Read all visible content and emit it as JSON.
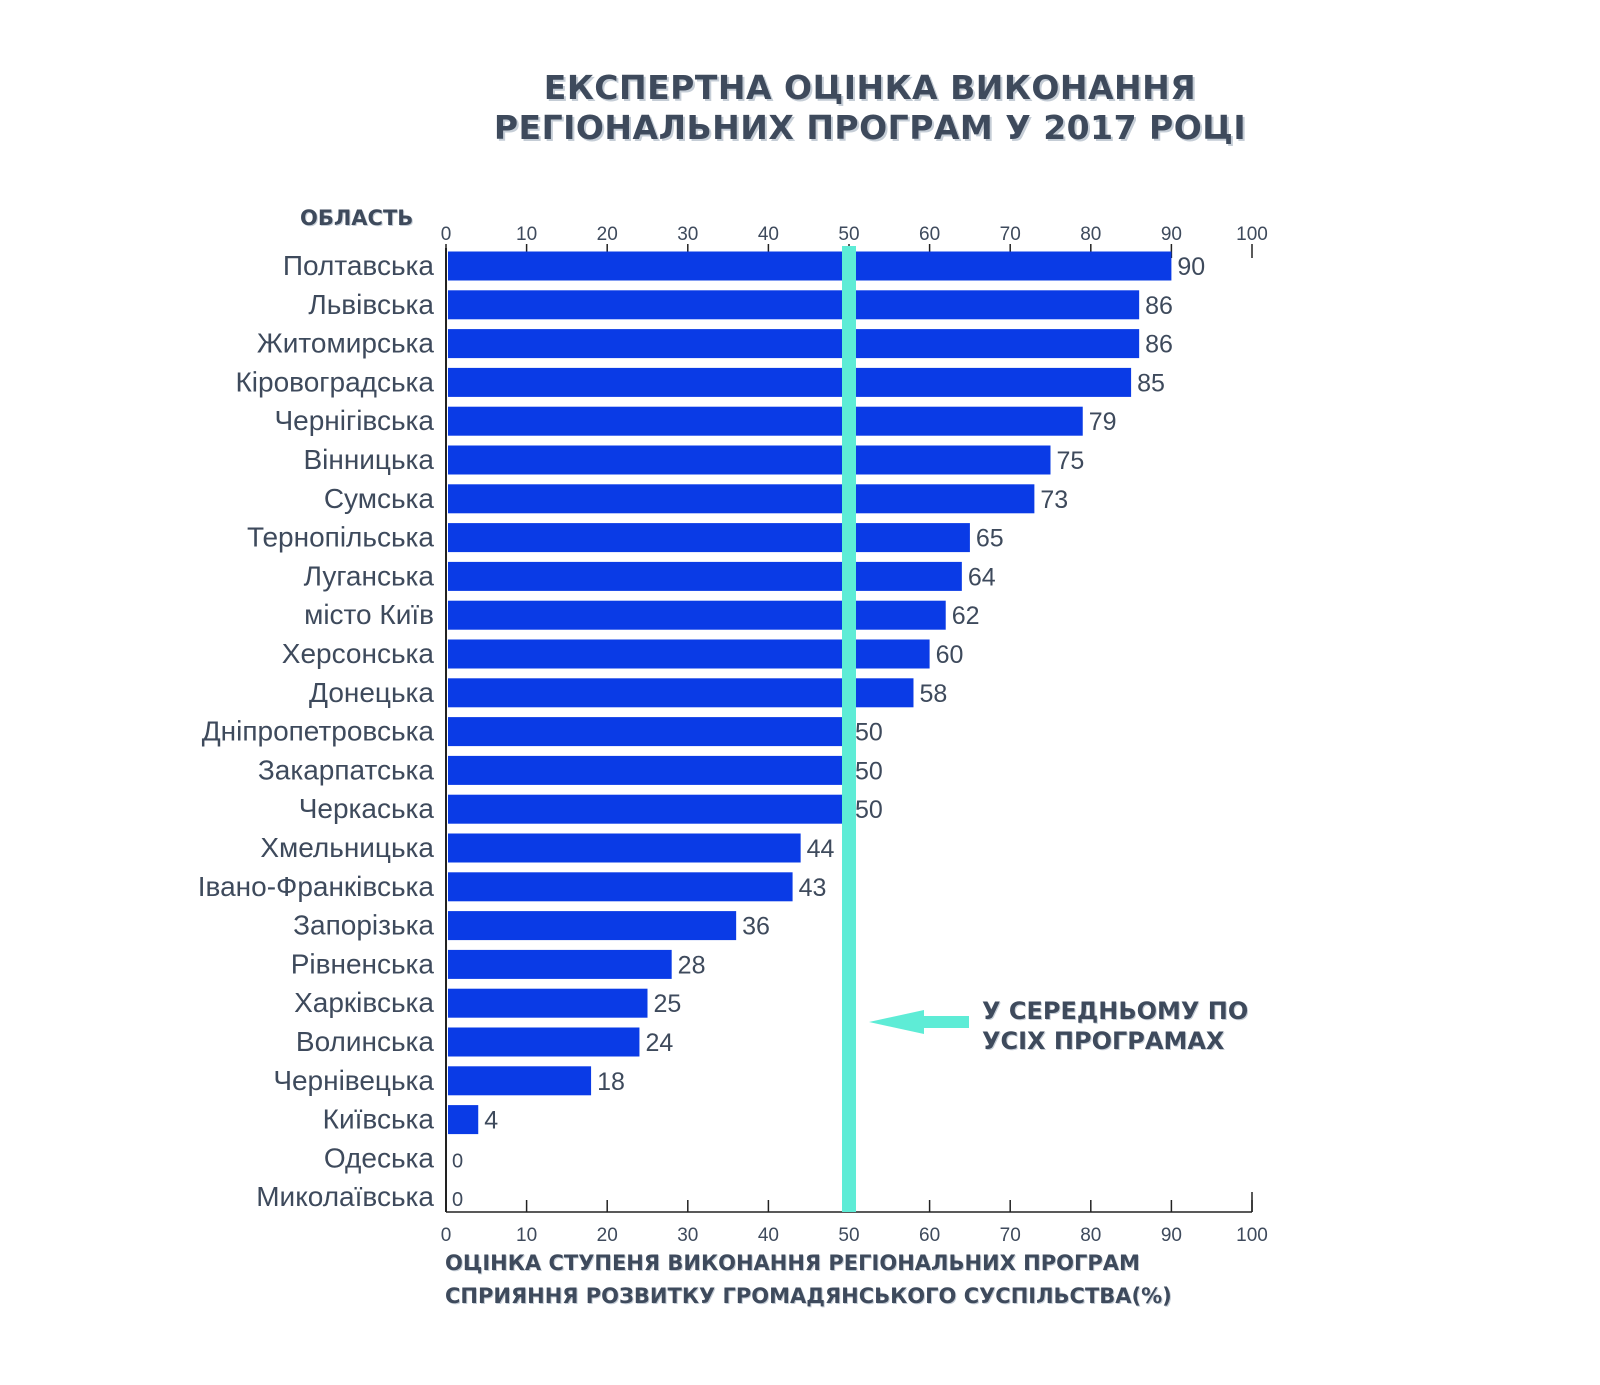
{
  "title_lines": [
    "ЕКСПЕРТНА ОЦІНКА ВИКОНАННЯ",
    "РЕГІОНАЛЬНИХ ПРОГРАМ У 2017 РОЦІ"
  ],
  "y_header": "ОБЛАСТЬ",
  "xlabel_lines": [
    "ОЦІНКА СТУПЕНЯ ВИКОНАННЯ РЕГІОНАЛЬНИХ ПРОГРАМ",
    "СПРИЯННЯ РОЗВИТКУ ГРОМАДЯНСЬКОГО СУСПІЛЬСТВА(%)"
  ],
  "annotation_lines": [
    "У СЕРЕДНЬОМУ ПО",
    "УСІХ ПРОГРАМАХ"
  ],
  "colors": {
    "bar": "#0a3be6",
    "average_line": "#5eecd6",
    "text": "#3e4a5c",
    "axis": "#222222"
  },
  "chart_data": {
    "type": "bar",
    "orientation": "horizontal",
    "categories": [
      "Полтавська",
      "Львівська",
      "Житомирська",
      "Кіровоградська",
      "Чернігівська",
      "Вінницька",
      "Сумська",
      "Тернопільська",
      "Луганська",
      "місто Київ",
      "Херсонська",
      "Донецька",
      "Дніпропетровська",
      "Закарпатська",
      "Черкаська",
      "Хмельницька",
      "Івано-Франківська",
      "Запорізька",
      "Рівненська",
      "Харківська",
      "Волинська",
      "Чернівецька",
      "Київська",
      "Одеська",
      "Миколаївська"
    ],
    "values": [
      90,
      86,
      86,
      85,
      79,
      75,
      73,
      65,
      64,
      62,
      60,
      58,
      50,
      50,
      50,
      44,
      43,
      36,
      28,
      25,
      24,
      18,
      4,
      0,
      0
    ],
    "xlim": [
      0,
      100
    ],
    "xticks": [
      0,
      10,
      20,
      30,
      40,
      50,
      60,
      70,
      80,
      90,
      100
    ],
    "average": 50,
    "grid": false,
    "data_labels": true
  }
}
